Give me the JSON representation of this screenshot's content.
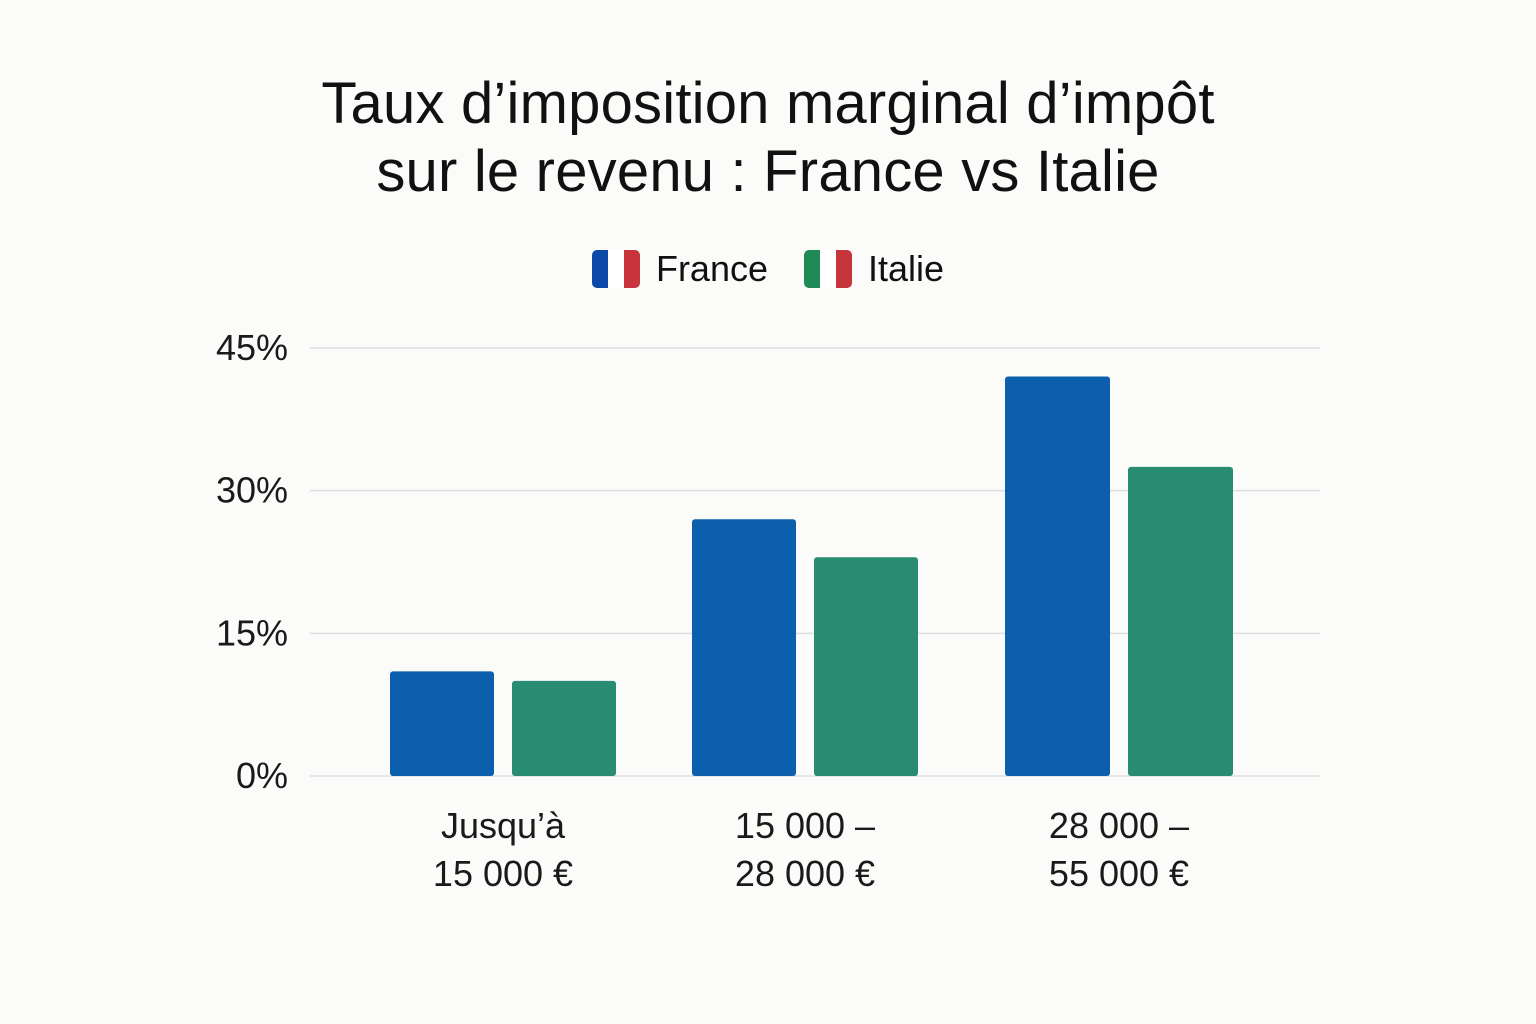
{
  "chart_data": {
    "type": "bar",
    "title": [
      "Taux d’imposition marginal d’impôt",
      "sur le revenu : France vs Italie"
    ],
    "categories": [
      [
        "Jusqu’à",
        "15 000 €"
      ],
      [
        "15 000 –",
        "28 000 €"
      ],
      [
        "28 000 –",
        "55 000 €"
      ]
    ],
    "series": [
      {
        "name": "France",
        "color": "#0b5fad",
        "flag": [
          "#0b4aa8",
          "#ffffff",
          "#c8343b"
        ],
        "values": [
          11,
          27,
          42
        ]
      },
      {
        "name": "Italie",
        "color": "#288c72",
        "flag": [
          "#1f8a55",
          "#ffffff",
          "#c8343b"
        ],
        "values": [
          10,
          23,
          32.5
        ]
      }
    ],
    "yticks": [
      0,
      15,
      30,
      45
    ],
    "ytick_labels": [
      "0%",
      "15%",
      "30%",
      "45%"
    ],
    "ylim": [
      0,
      45
    ],
    "xlabel": "",
    "ylabel": "",
    "grid": true,
    "legend_position": "top-center"
  }
}
